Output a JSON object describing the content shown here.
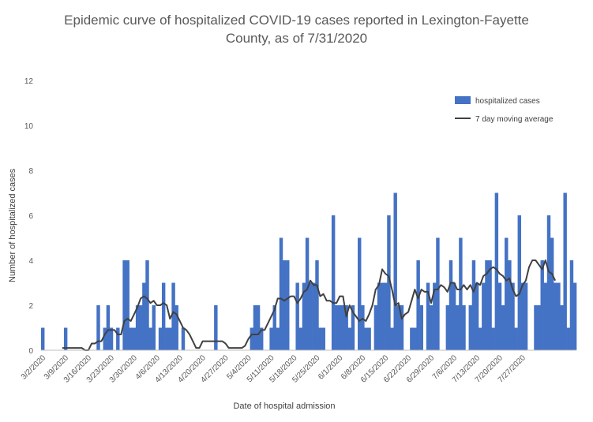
{
  "chart_data": {
    "type": "bar",
    "title_lines": [
      "Epidemic curve of hospitalized COVID-19 cases reported in Lexington-Fayette",
      "County, as of 7/31/2020"
    ],
    "xlabel": "Date of hospital admission",
    "ylabel": "Number  of hospitalized cases",
    "ylim": [
      0,
      12
    ],
    "yticks": [
      "0",
      "2",
      "4",
      "6",
      "8",
      "10",
      "12"
    ],
    "grid": false,
    "legend_position": "top-right",
    "x_start": "2020-03-02",
    "x_tick_labels": [
      "3/2/2020",
      "3/9/2020",
      "3/16/2020",
      "3/23/2020",
      "3/30/2020",
      "4/6/2020",
      "4/13/2020",
      "4/20/2020",
      "4/27/2020",
      "5/4/2020",
      "5/11/2020",
      "5/18/2020",
      "5/25/2020",
      "6/1/2020",
      "6/8/2020",
      "6/15/2020",
      "6/22/2020",
      "6/29/2020",
      "7/6/2020",
      "7/13/2020",
      "7/20/2020",
      "7/27/2020"
    ],
    "series": [
      {
        "name": "hospitalized cases",
        "kind": "bar",
        "color": "#4472C4",
        "values": [
          1,
          0,
          0,
          0,
          0,
          0,
          0,
          1,
          0,
          0,
          0,
          0,
          0,
          0,
          0,
          0,
          0,
          2,
          0,
          1,
          2,
          1,
          0,
          1,
          0,
          4,
          4,
          1,
          1,
          2,
          2,
          3,
          4,
          1,
          2,
          0,
          1,
          3,
          1,
          1,
          3,
          2,
          0,
          1,
          0,
          0,
          0,
          0,
          0,
          0,
          0,
          0,
          0,
          2,
          0,
          0,
          0,
          0,
          0,
          0,
          0,
          0,
          0,
          0,
          1,
          2,
          2,
          1,
          0,
          0,
          1,
          2,
          1,
          5,
          4,
          4,
          0,
          0,
          3,
          1,
          3,
          5,
          3,
          3,
          4,
          1,
          1,
          0,
          0,
          6,
          2,
          2,
          2,
          2,
          1,
          2,
          0,
          5,
          2,
          1,
          1,
          0,
          2,
          3,
          3,
          3,
          6,
          1,
          7,
          2,
          2,
          0,
          0,
          1,
          1,
          4,
          2,
          0,
          3,
          2,
          3,
          5,
          0,
          0,
          2,
          4,
          3,
          2,
          5,
          2,
          0,
          2,
          4,
          3,
          1,
          3,
          4,
          4,
          1,
          7,
          3,
          2,
          5,
          4,
          3,
          1,
          6,
          3,
          3,
          0,
          0,
          2,
          2,
          4,
          3,
          6,
          5,
          3,
          3,
          2,
          7,
          1,
          4,
          3
        ]
      },
      {
        "name": "7 day moving average",
        "kind": "line",
        "color": "#404040",
        "values": [
          null,
          null,
          null,
          null,
          null,
          null,
          0.1,
          0.1,
          0.1,
          0.1,
          0.1,
          0.1,
          0.1,
          0.0,
          0.0,
          0.3,
          0.3,
          0.4,
          0.4,
          0.7,
          0.9,
          0.9,
          0.9,
          0.7,
          0.7,
          1.3,
          1.4,
          1.3,
          1.6,
          1.9,
          2.3,
          2.4,
          2.3,
          2.1,
          2.2,
          2.0,
          2.0,
          2.1,
          2.0,
          1.4,
          1.7,
          1.6,
          1.3,
          1.0,
          0.9,
          0.7,
          0.4,
          0.1,
          0.1,
          0.4,
          0.4,
          0.4,
          0.4,
          0.4,
          0.4,
          0.4,
          0.3,
          0.1,
          0.1,
          0.1,
          0.1,
          0.1,
          0.2,
          0.5,
          0.7,
          0.7,
          0.7,
          0.9,
          0.9,
          1.2,
          1.5,
          1.8,
          2.3,
          2.3,
          2.2,
          2.3,
          2.4,
          2.4,
          2.1,
          2.3,
          2.6,
          2.7,
          3.1,
          2.9,
          2.9,
          2.4,
          2.5,
          2.2,
          2.2,
          2.1,
          2.1,
          2.4,
          2.4,
          1.5,
          2.0,
          1.7,
          1.5,
          1.3,
          1.4,
          1.3,
          1.6,
          2.0,
          2.7,
          2.9,
          3.6,
          3.4,
          3.3,
          2.7,
          2.0,
          2.1,
          1.4,
          1.6,
          1.7,
          2.2,
          2.7,
          2.3,
          2.7,
          2.6,
          2.6,
          2.1,
          2.7,
          2.7,
          2.9,
          2.8,
          2.6,
          3.0,
          3.0,
          2.7,
          2.7,
          2.9,
          2.7,
          2.9,
          2.6,
          3.0,
          2.9,
          3.3,
          3.4,
          3.6,
          3.7,
          3.6,
          3.4,
          3.3,
          3.1,
          3.2,
          2.7,
          2.4,
          2.5,
          2.9,
          3.1,
          3.7,
          4.0,
          4.0,
          3.8,
          3.6,
          4.0,
          3.5,
          3.4,
          3.1
        ]
      }
    ]
  }
}
